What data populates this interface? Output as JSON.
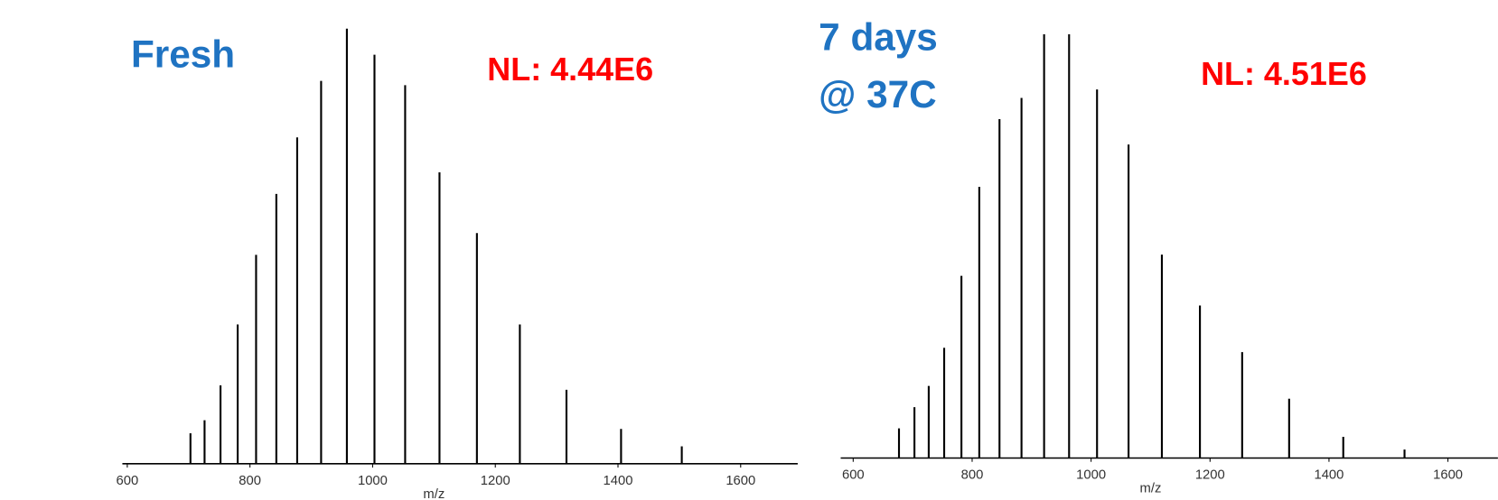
{
  "chart_data": [
    {
      "type": "spectrum",
      "title": [
        "Fresh"
      ],
      "annotation": "NL: 4.44E6",
      "xlabel": "m/z",
      "x": [
        703,
        726,
        752,
        780,
        810,
        843,
        877,
        916,
        958,
        1003,
        1053,
        1109,
        1170,
        1240,
        1316,
        1405,
        1504
      ],
      "values": [
        7,
        10,
        18,
        32,
        48,
        62,
        75,
        88,
        100,
        94,
        87,
        67,
        53,
        32,
        17,
        8,
        4
      ],
      "xlim": [
        592,
        1693
      ],
      "ylim": [
        0,
        100
      ],
      "xticks": [
        600,
        800,
        1000,
        1200,
        1400,
        1600
      ],
      "color": "#000000",
      "title_color": "#1f73c2",
      "annotation_color": "#ff0000"
    },
    {
      "type": "spectrum",
      "title": [
        "7 days",
        "@ 37C"
      ],
      "annotation": "NL: 4.51E6",
      "xlabel": "m/z",
      "x": [
        677,
        703,
        727,
        753,
        782,
        812,
        846,
        883,
        921,
        963,
        1010,
        1063,
        1119,
        1183,
        1254,
        1333,
        1424,
        1527
      ],
      "values": [
        7,
        12,
        17,
        26,
        43,
        64,
        80,
        85,
        100,
        100,
        87,
        74,
        48,
        36,
        25,
        14,
        5,
        2
      ],
      "xlim": [
        579,
        1684
      ],
      "ylim": [
        0,
        100
      ],
      "xticks": [
        600,
        800,
        1000,
        1200,
        1400,
        1600
      ],
      "color": "#000000",
      "title_color": "#1f73c2",
      "annotation_color": "#ff0000"
    }
  ]
}
